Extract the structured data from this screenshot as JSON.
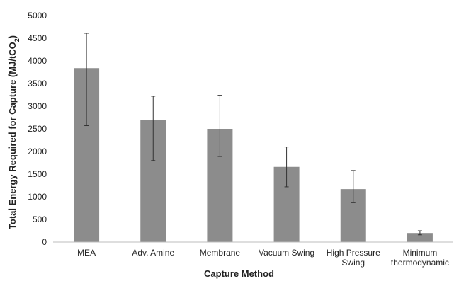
{
  "chart_data": {
    "type": "bar",
    "title": "",
    "xlabel": "Capture Method",
    "ylabel": {
      "main": "Total Energy Required for Capture (MJ/tCO",
      "subscript": "2",
      "close": ")"
    },
    "ylim": [
      0,
      5000
    ],
    "yticks": [
      0,
      500,
      1000,
      1500,
      2000,
      2500,
      3000,
      3500,
      4000,
      4500,
      5000
    ],
    "grid": false,
    "legend": "none",
    "bar_color": "#8c8c8c",
    "categories": [
      [
        "MEA"
      ],
      [
        "Adv. Amine"
      ],
      [
        "Membrane"
      ],
      [
        "Vacuum Swing"
      ],
      [
        "High Pressure",
        "Swing"
      ],
      [
        "Minimum",
        "thermodynamic"
      ]
    ],
    "values": [
      3840,
      2690,
      2500,
      1660,
      1170,
      200
    ],
    "error_low": [
      2570,
      1800,
      1890,
      1220,
      870,
      160
    ],
    "error_high": [
      4610,
      3220,
      3240,
      2100,
      1580,
      250
    ]
  }
}
